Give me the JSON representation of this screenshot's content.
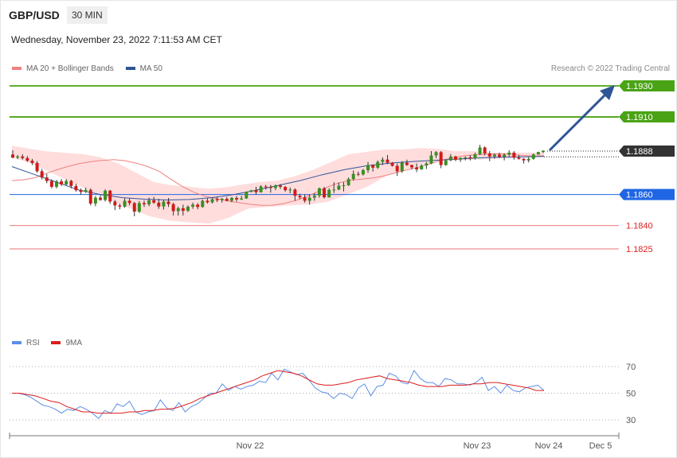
{
  "header": {
    "symbol": "GBP/USD",
    "timeframe": "30 MIN"
  },
  "datetime": "Wednesday, November 23, 2022 7:11:53 AM CET",
  "legend": {
    "ma20": {
      "label": "MA 20 + Bollinger Bands",
      "color": "#f08080"
    },
    "ma50": {
      "label": "MA 50",
      "color": "#2f5597"
    },
    "rsi": {
      "label": "RSI",
      "color": "#5b8ee6"
    },
    "rsi_ma": {
      "label": "9MA",
      "color": "#dd1c1c"
    }
  },
  "credit": "Research © 2022 Trading Central",
  "levels": [
    {
      "value": "1.1930",
      "style": "green"
    },
    {
      "value": "1.1910",
      "style": "green"
    },
    {
      "value": "1.1888",
      "style": "dark"
    },
    {
      "value": "1.1860",
      "style": "blue"
    },
    {
      "value": "1.1840",
      "style": "red"
    },
    {
      "value": "1.1825",
      "style": "red"
    }
  ],
  "rsi_ticks": [
    "70",
    "50",
    "30"
  ],
  "x_labels": [
    "Nov 22",
    "Nov 23",
    "Nov 24",
    "Dec 5"
  ],
  "chart_data": {
    "type": "candlestick",
    "price_ylim": [
      1.1775,
      1.1935
    ],
    "rsi_ylim": [
      20,
      80
    ],
    "candles": [
      [
        1.18858,
        1.18885,
        1.18833,
        1.18838
      ],
      [
        1.18838,
        1.18855,
        1.18828,
        1.18845
      ],
      [
        1.18845,
        1.1886,
        1.18825,
        1.18835
      ],
      [
        1.18835,
        1.18848,
        1.1881,
        1.18818
      ],
      [
        1.18818,
        1.1883,
        1.1879,
        1.18803
      ],
      [
        1.18803,
        1.18815,
        1.1874,
        1.1875
      ],
      [
        1.1875,
        1.18765,
        1.18698,
        1.1871
      ],
      [
        1.1871,
        1.18733,
        1.18673,
        1.18687
      ],
      [
        1.18687,
        1.18698,
        1.1864,
        1.1865
      ],
      [
        1.1865,
        1.18695,
        1.1864,
        1.18685
      ],
      [
        1.18685,
        1.187,
        1.18655,
        1.18665
      ],
      [
        1.18665,
        1.187,
        1.18658,
        1.18688
      ],
      [
        1.18688,
        1.18695,
        1.1864,
        1.18655
      ],
      [
        1.18655,
        1.1867,
        1.18618,
        1.18628
      ],
      [
        1.18628,
        1.1864,
        1.186,
        1.18617
      ],
      [
        1.18617,
        1.18645,
        1.1861,
        1.1863
      ],
      [
        1.1863,
        1.1864,
        1.1853,
        1.18542
      ],
      [
        1.18542,
        1.1859,
        1.18525,
        1.1858
      ],
      [
        1.1858,
        1.18595,
        1.1856,
        1.18565
      ],
      [
        1.18565,
        1.18633,
        1.18555,
        1.18625
      ],
      [
        1.18625,
        1.1863,
        1.1854,
        1.18555
      ],
      [
        1.18555,
        1.18565,
        1.185,
        1.1853
      ],
      [
        1.1853,
        1.18542,
        1.18505,
        1.18522
      ],
      [
        1.18522,
        1.18575,
        1.18515,
        1.1856
      ],
      [
        1.1856,
        1.18575,
        1.1853,
        1.18545
      ],
      [
        1.18545,
        1.18553,
        1.1846,
        1.1849
      ],
      [
        1.1849,
        1.18558,
        1.18482,
        1.18545
      ],
      [
        1.18545,
        1.18562,
        1.1852,
        1.18537
      ],
      [
        1.18537,
        1.1858,
        1.18525,
        1.18563
      ],
      [
        1.18563,
        1.18585,
        1.1854,
        1.18548
      ],
      [
        1.18548,
        1.18572,
        1.18508,
        1.18523
      ],
      [
        1.18523,
        1.18565,
        1.18503,
        1.18555
      ],
      [
        1.18555,
        1.18578,
        1.1852,
        1.18538
      ],
      [
        1.18538,
        1.18548,
        1.18465,
        1.18493
      ],
      [
        1.18493,
        1.18522,
        1.18465,
        1.18512
      ],
      [
        1.18512,
        1.18535,
        1.18465,
        1.18495
      ],
      [
        1.18495,
        1.1853,
        1.18488,
        1.18522
      ],
      [
        1.18522,
        1.18548,
        1.18508,
        1.18535
      ],
      [
        1.18535,
        1.18545,
        1.18505,
        1.1852
      ],
      [
        1.1852,
        1.18568,
        1.18515,
        1.1856
      ],
      [
        1.1856,
        1.18575,
        1.18542,
        1.1855
      ],
      [
        1.1855,
        1.1858,
        1.18542,
        1.1857
      ],
      [
        1.1857,
        1.18585,
        1.18552,
        1.18563
      ],
      [
        1.18563,
        1.18578,
        1.18548,
        1.18572
      ],
      [
        1.18572,
        1.18585,
        1.18555,
        1.1856
      ],
      [
        1.1856,
        1.18585,
        1.1855,
        1.18578
      ],
      [
        1.18578,
        1.1859,
        1.18555,
        1.18568
      ],
      [
        1.18568,
        1.18592,
        1.18565,
        1.18575
      ],
      [
        1.18575,
        1.1862,
        1.18572,
        1.18617
      ],
      [
        1.18617,
        1.1863,
        1.18615,
        1.18627
      ],
      [
        1.18627,
        1.1865,
        1.186,
        1.18615
      ],
      [
        1.18615,
        1.1866,
        1.18612,
        1.18652
      ],
      [
        1.18652,
        1.18662,
        1.18632,
        1.18648
      ],
      [
        1.18648,
        1.18662,
        1.18612,
        1.18642
      ],
      [
        1.18642,
        1.18665,
        1.18628,
        1.18658
      ],
      [
        1.18658,
        1.18668,
        1.18636,
        1.18649
      ],
      [
        1.18649,
        1.18655,
        1.18618,
        1.18628
      ],
      [
        1.18628,
        1.18645,
        1.18608,
        1.18632
      ],
      [
        1.18632,
        1.1864,
        1.1856,
        1.18592
      ],
      [
        1.18592,
        1.18605,
        1.1857,
        1.18582
      ],
      [
        1.18582,
        1.186,
        1.18548,
        1.1856
      ],
      [
        1.1856,
        1.186,
        1.18535,
        1.1858
      ],
      [
        1.1858,
        1.1861,
        1.1856,
        1.18593
      ],
      [
        1.18593,
        1.18645,
        1.1858,
        1.1864
      ],
      [
        1.1864,
        1.1865,
        1.18575,
        1.18582
      ],
      [
        1.18582,
        1.1864,
        1.1858,
        1.1863
      ],
      [
        1.1863,
        1.1868,
        1.1861,
        1.18632
      ],
      [
        1.18632,
        1.18677,
        1.18628,
        1.18657
      ],
      [
        1.18657,
        1.1868,
        1.1862,
        1.1866
      ],
      [
        1.1866,
        1.1871,
        1.18655,
        1.187
      ],
      [
        1.187,
        1.18755,
        1.1869,
        1.18733
      ],
      [
        1.18733,
        1.18748,
        1.18718,
        1.1873
      ],
      [
        1.1873,
        1.18765,
        1.18722,
        1.18757
      ],
      [
        1.18757,
        1.1881,
        1.1874,
        1.1879
      ],
      [
        1.1879,
        1.18795,
        1.18748,
        1.18773
      ],
      [
        1.18773,
        1.1882,
        1.18765,
        1.1881
      ],
      [
        1.1881,
        1.1884,
        1.1879,
        1.18825
      ],
      [
        1.18825,
        1.18855,
        1.18795,
        1.18805
      ],
      [
        1.18805,
        1.1881,
        1.1878,
        1.18785
      ],
      [
        1.18785,
        1.188,
        1.1872,
        1.1875
      ],
      [
        1.1875,
        1.18815,
        1.1874,
        1.18805
      ],
      [
        1.18805,
        1.18825,
        1.18785,
        1.1879
      ],
      [
        1.1879,
        1.18793,
        1.18762,
        1.18775
      ],
      [
        1.18775,
        1.188,
        1.18745,
        1.18762
      ],
      [
        1.18762,
        1.18795,
        1.1876,
        1.18787
      ],
      [
        1.18787,
        1.1881,
        1.18765,
        1.188
      ],
      [
        1.188,
        1.1888,
        1.18795,
        1.18852
      ],
      [
        1.18852,
        1.1888,
        1.18835,
        1.18873
      ],
      [
        1.18873,
        1.1888,
        1.1877,
        1.1879
      ],
      [
        1.1879,
        1.18825,
        1.18785,
        1.1882
      ],
      [
        1.1882,
        1.1886,
        1.18815,
        1.18845
      ],
      [
        1.18845,
        1.1885,
        1.18815,
        1.18825
      ],
      [
        1.18825,
        1.1884,
        1.1881,
        1.18835
      ],
      [
        1.18835,
        1.18845,
        1.1882,
        1.1884
      ],
      [
        1.1884,
        1.18855,
        1.1882,
        1.18833
      ],
      [
        1.18833,
        1.1887,
        1.18825,
        1.1886
      ],
      [
        1.1886,
        1.1892,
        1.18855,
        1.18903
      ],
      [
        1.18903,
        1.1891,
        1.18853,
        1.18865
      ],
      [
        1.18865,
        1.1888,
        1.18815,
        1.18845
      ],
      [
        1.18845,
        1.18865,
        1.1883,
        1.18857
      ],
      [
        1.18857,
        1.1887,
        1.18835,
        1.18843
      ],
      [
        1.18843,
        1.18865,
        1.1882,
        1.18857
      ],
      [
        1.18857,
        1.18885,
        1.18845,
        1.1887
      ],
      [
        1.1887,
        1.1888,
        1.18825,
        1.18838
      ],
      [
        1.18838,
        1.18855,
        1.18825,
        1.1883
      ],
      [
        1.1883,
        1.18835,
        1.188,
        1.1882
      ],
      [
        1.1882,
        1.1884,
        1.18807,
        1.1883
      ],
      [
        1.1883,
        1.18865,
        1.18825,
        1.18858
      ],
      [
        1.18858,
        1.18876,
        1.18855,
        1.18874
      ],
      [
        1.18874,
        1.18885,
        1.18868,
        1.18882
      ]
    ],
    "ma20": [
      1.1869,
      1.18695,
      1.18708,
      1.18735,
      1.1876,
      1.18782,
      1.188,
      1.18812,
      1.1882,
      1.18825,
      1.18818,
      1.18802,
      1.1878,
      1.1875,
      1.187,
      1.18655,
      1.18617,
      1.1859,
      1.18575,
      1.1856,
      1.18548,
      1.18538,
      1.1853,
      1.18531,
      1.18542,
      1.1856,
      1.18585,
      1.18618,
      1.18652,
      1.18678,
      1.18693,
      1.187,
      1.18708,
      1.18722,
      1.18742,
      1.1876,
      1.18778,
      1.188,
      1.18822,
      1.18838,
      1.1885,
      1.18856,
      1.1886,
      1.18862,
      1.1886,
      1.18852,
      1.18848,
      1.1885
    ],
    "ma50": [
      1.1878,
      1.1873,
      1.1868,
      1.1863,
      1.186,
      1.1858,
      1.1857,
      1.18565,
      1.18568,
      1.1858,
      1.186,
      1.18628,
      1.18658,
      1.1869,
      1.18728,
      1.1876,
      1.18785,
      1.18802,
      1.18812,
      1.1882,
      1.18828,
      1.18836,
      1.18841,
      1.18843,
      1.18845
    ],
    "bb_upper": [
      1.18915,
      1.18895,
      1.18878,
      1.18868,
      1.1886,
      1.1884,
      1.188,
      1.1874,
      1.1868,
      1.1866,
      1.1865,
      1.18638,
      1.18645,
      1.18665,
      1.1868,
      1.1869,
      1.1872,
      1.1876,
      1.1881,
      1.1886,
      1.18875,
      1.1889,
      1.1889,
      1.189,
      1.18895,
      1.1888,
      1.1888,
      1.18868,
      1.1887,
      1.1887,
      1.18872
    ],
    "bb_lower": [
      1.1884,
      1.188,
      1.1874,
      1.1868,
      1.1862,
      1.18565,
      1.1851,
      1.1846,
      1.18432,
      1.1842,
      1.18413,
      1.1845,
      1.1851,
      1.1852,
      1.1853,
      1.18535,
      1.18552,
      1.186,
      1.18648,
      1.1872,
      1.1876,
      1.188,
      1.1882,
      1.18822,
      1.18828,
      1.18832,
      1.18838,
      1.18842
    ],
    "rsi": [
      50,
      50,
      49,
      47,
      44,
      41,
      40,
      38,
      35,
      38,
      37,
      40,
      38,
      35,
      31,
      37,
      35,
      42,
      40,
      44,
      36,
      34,
      36,
      37,
      45,
      39,
      37,
      43,
      36,
      40,
      42,
      46,
      50,
      50,
      57,
      52,
      55,
      53,
      55,
      56,
      59,
      58,
      65,
      60,
      68,
      66,
      64,
      65,
      60,
      54,
      51,
      50,
      46,
      50,
      49,
      46,
      54,
      57,
      48,
      55,
      56,
      65,
      63,
      58,
      57,
      67,
      61,
      58,
      58,
      55,
      61,
      60,
      57,
      57,
      56,
      58,
      62,
      52,
      55,
      50,
      56,
      52,
      51,
      54,
      55,
      56,
      52
    ],
    "rsi_ma": [
      50,
      50,
      49,
      48,
      46,
      44,
      43,
      40,
      38,
      36,
      36,
      35,
      35,
      35,
      35,
      36,
      36,
      37,
      37,
      38,
      38,
      39,
      41,
      43,
      46,
      48,
      50,
      52,
      54,
      56,
      58,
      60,
      63,
      65,
      67,
      66,
      65,
      63,
      60,
      57,
      56,
      56,
      57,
      58,
      60,
      61,
      62,
      63,
      61,
      60,
      59,
      58,
      56,
      55,
      55,
      55,
      56,
      56,
      56,
      57,
      57,
      58,
      58,
      57,
      56,
      55,
      54,
      52,
      52
    ]
  }
}
